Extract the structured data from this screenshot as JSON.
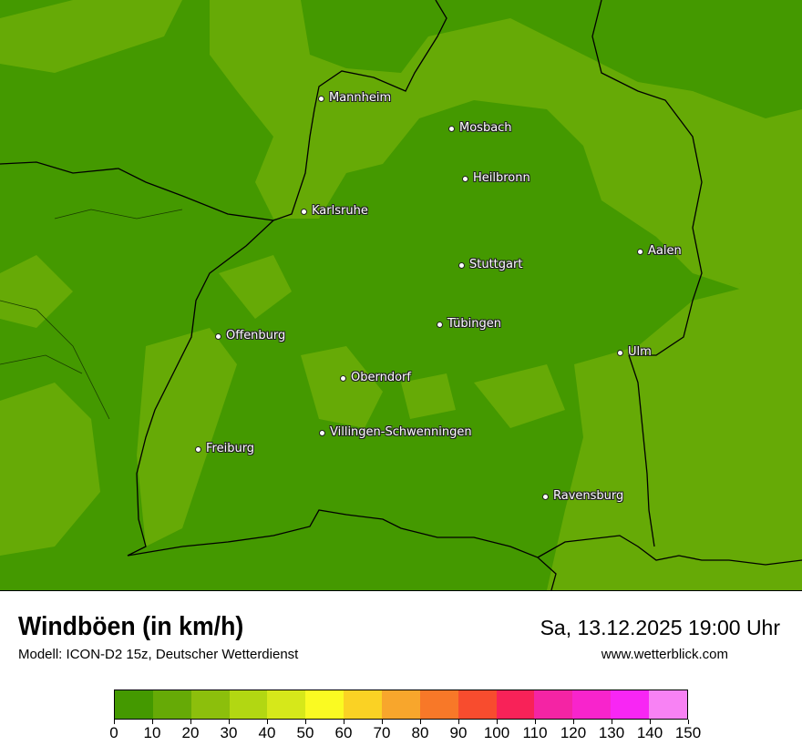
{
  "map": {
    "base_color": "#449900",
    "light_color": "#66aa06",
    "cities": [
      {
        "name": "Mannheim"
      },
      {
        "name": "Mosbach"
      },
      {
        "name": "Heilbronn"
      },
      {
        "name": "Karlsruhe"
      },
      {
        "name": "Aalen"
      },
      {
        "name": "Stuttgart"
      },
      {
        "name": "Tübingen"
      },
      {
        "name": "Offenburg"
      },
      {
        "name": "Ulm"
      },
      {
        "name": "Oberndorf"
      },
      {
        "name": "Villingen-Schwenningen"
      },
      {
        "name": "Freiburg"
      },
      {
        "name": "Ravensburg"
      }
    ]
  },
  "header": {
    "title": "Windböen (in km/h)",
    "model": "Modell: ICON-D2 15z, Deutscher Wetterdienst",
    "datetime": "Sa, 13.12.2025 19:00 Uhr",
    "website": "www.wetterblick.com"
  },
  "legend": {
    "ticks": [
      "0",
      "10",
      "20",
      "30",
      "40",
      "50",
      "60",
      "70",
      "80",
      "90",
      "100",
      "110",
      "120",
      "130",
      "140",
      "150"
    ],
    "colors": [
      "#449900",
      "#66aa06",
      "#8cbf0c",
      "#b2d712",
      "#d6e81a",
      "#fafa22",
      "#fad224",
      "#f8a62c",
      "#f87828",
      "#f84c2e",
      "#f82258",
      "#f424a4",
      "#f824cc",
      "#f826f4",
      "#f882f4"
    ]
  }
}
